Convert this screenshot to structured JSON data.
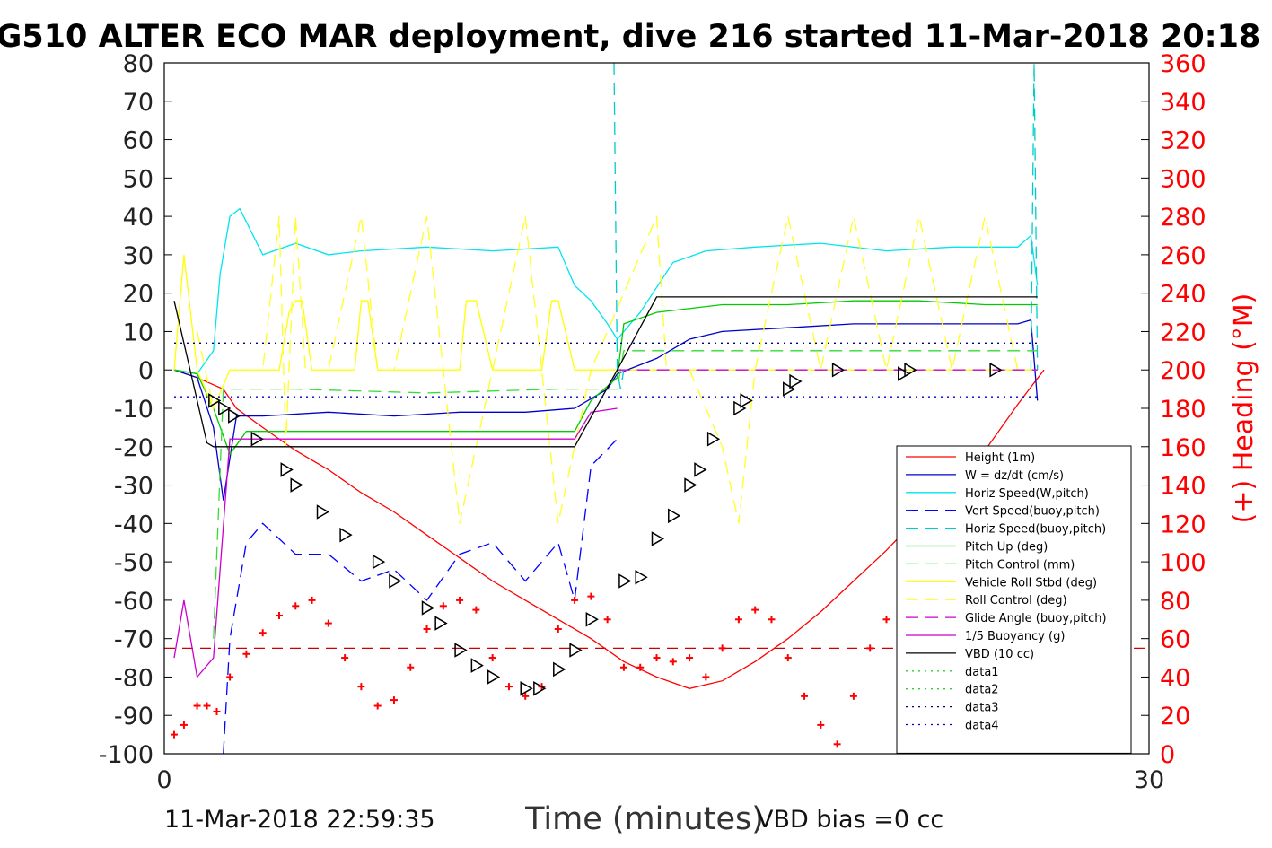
{
  "chart_data": {
    "type": "line",
    "title": "G510 ALTER ECO MAR deployment, dive 216 started 11-Mar-2018 20:18",
    "xlabel": "Time (minutes)",
    "ylabel": "",
    "y2label": "(+) Heading (°M)",
    "xlim": [
      0,
      30
    ],
    "ylim": [
      -100,
      80
    ],
    "y2lim": [
      0,
      360
    ],
    "xticks": [
      "0",
      "30"
    ],
    "yticks": [
      "80",
      "70",
      "60",
      "50",
      "40",
      "30",
      "20",
      "10",
      "0",
      "-10",
      "-20",
      "-30",
      "-40",
      "-50",
      "-60",
      "-70",
      "-80",
      "-90",
      "-100"
    ],
    "y2ticks": [
      "360",
      "340",
      "320",
      "300",
      "280",
      "260",
      "240",
      "220",
      "200",
      "180",
      "160",
      "140",
      "120",
      "100",
      "80",
      "60",
      "40",
      "20",
      "0"
    ],
    "legend_position": "bottom-right",
    "grid": false,
    "series": [
      {
        "name": "Height (1m)",
        "color": "#ff0000",
        "style": "solid",
        "x": [
          0.3,
          1.0,
          1.8,
          2.2,
          3.0,
          4.0,
          5.0,
          6.0,
          7.0,
          8.0,
          9.0,
          10.0,
          11.0,
          12.0,
          13.0,
          14.0,
          15.0,
          16.0,
          17.0,
          18.0,
          19.0,
          20.0,
          21.0,
          22.0,
          23.0,
          24.0,
          25.0,
          26.0,
          26.8
        ],
        "y": [
          0,
          -2,
          -5,
          -10,
          -15,
          -21,
          -26,
          -32,
          -37,
          -43,
          -49,
          -55,
          -60,
          -65,
          -70,
          -76,
          -80,
          -83,
          -81,
          -76,
          -70,
          -63,
          -55,
          -47,
          -38,
          -30,
          -21,
          -9,
          0
        ]
      },
      {
        "name": "W = dz/dt (cm/s)",
        "color": "#0000cc",
        "style": "solid",
        "x": [
          0.3,
          1.0,
          1.5,
          1.8,
          2.2,
          3.0,
          5.0,
          7.0,
          9.0,
          11.0,
          12.5,
          13.5,
          13.8,
          15.0,
          16.0,
          17.0,
          19.0,
          21.0,
          23.0,
          25.0,
          26.0,
          26.4,
          26.6
        ],
        "y": [
          0,
          -2,
          -15,
          -34,
          -12,
          -12,
          -11,
          -12,
          -11,
          -11,
          -10,
          -5,
          -1,
          3,
          8,
          10,
          11,
          12,
          12,
          12,
          12,
          13,
          -8
        ]
      },
      {
        "name": "Horiz Speed(W,pitch)",
        "color": "#00e5ee",
        "style": "solid",
        "x": [
          0.3,
          1.0,
          1.5,
          1.7,
          2.0,
          2.3,
          3.0,
          4.0,
          5.0,
          6.0,
          8.0,
          10.0,
          12.0,
          12.5,
          13.0,
          13.5,
          13.8,
          14.5,
          15.5,
          16.5,
          18.0,
          20.0,
          22.0,
          24.0,
          26.0,
          26.4,
          26.6
        ],
        "y": [
          0,
          -1,
          5,
          25,
          40,
          42,
          30,
          33,
          30,
          31,
          32,
          31,
          32,
          22,
          18,
          12,
          8,
          15,
          28,
          31,
          32,
          33,
          31,
          32,
          32,
          35,
          22
        ]
      },
      {
        "name": "Vert Speed(buoy,pitch)",
        "color": "#0000ff",
        "style": "dashed",
        "x": [
          1.8,
          2.0,
          2.5,
          3.0,
          4.0,
          5.0,
          6.0,
          7.0,
          8.0,
          9.0,
          10.0,
          11.0,
          12.0,
          12.5,
          13.0,
          13.8
        ],
        "y": [
          -100,
          -70,
          -45,
          -40,
          -48,
          -48,
          -55,
          -52,
          -60,
          -48,
          -45,
          -55,
          -45,
          -60,
          -25,
          -18
        ]
      },
      {
        "name": "Horiz Speed(buoy,pitch)",
        "color": "#00cccc",
        "style": "dashed",
        "x": [
          13.7,
          13.8,
          13.9,
          14.0,
          26.4,
          26.5,
          26.6
        ],
        "y": [
          80,
          0,
          -5,
          0,
          0,
          80,
          0
        ]
      },
      {
        "name": "Pitch Up (deg)",
        "color": "#00cc00",
        "style": "solid",
        "x": [
          0.3,
          1.0,
          1.5,
          2.0,
          2.5,
          3.0,
          5.0,
          7.0,
          9.0,
          11.0,
          12.0,
          12.5,
          13.0,
          13.8,
          14.0,
          15.0,
          17.0,
          19.0,
          21.0,
          23.0,
          25.0,
          26.6
        ],
        "y": [
          0,
          -1,
          -10,
          -22,
          -16,
          -16,
          -16,
          -16,
          -16,
          -16,
          -16,
          -16,
          -8,
          -2,
          12,
          15,
          17,
          17,
          18,
          18,
          17,
          17
        ]
      },
      {
        "name": "Pitch Control (mm)",
        "color": "#33dd33",
        "style": "dashed",
        "x": [
          1.5,
          1.8,
          2.0,
          4.0,
          8.0,
          12.0,
          13.8,
          14.0,
          16.0,
          20.0,
          26.6
        ],
        "y": [
          -70,
          -5,
          -5,
          -5,
          -6,
          -5,
          -5,
          5,
          5,
          5,
          5
        ]
      },
      {
        "name": "Vehicle Roll Stbd (deg)",
        "color": "#ffff00",
        "style": "solid",
        "x": [
          0.3,
          0.6,
          1.0,
          1.5,
          2.0,
          3.0,
          3.5,
          3.8,
          4.0,
          4.2,
          4.5,
          5.0,
          5.5,
          5.8,
          6.0,
          6.2,
          6.5,
          7.0,
          8.0,
          9.0,
          9.2,
          9.5,
          10.0,
          10.5,
          11.0,
          11.5,
          11.8,
          12.0,
          12.5,
          13.0,
          14.0,
          20.0,
          26.6
        ],
        "y": [
          0,
          30,
          0,
          -10,
          0,
          0,
          0,
          15,
          18,
          18,
          0,
          0,
          0,
          0,
          18,
          18,
          0,
          0,
          0,
          0,
          18,
          18,
          0,
          0,
          0,
          0,
          18,
          18,
          0,
          0,
          0,
          0,
          0
        ]
      },
      {
        "name": "Roll Control (deg)",
        "color": "#ffff22",
        "style": "dashed",
        "x": [
          1.0,
          1.5,
          2.0,
          3.0,
          3.5,
          3.7,
          4.0,
          4.3,
          5.0,
          6.0,
          6.5,
          7.0,
          8.0,
          9.0,
          10.0,
          11.0,
          12.0,
          13.0,
          15.0,
          15.3,
          16.0,
          17.0,
          17.5,
          18.0,
          19.0,
          20.0,
          21.0,
          22.0,
          23.0,
          24.0,
          25.0,
          26.0
        ],
        "y": [
          10,
          -10,
          0,
          0,
          40,
          -20,
          40,
          0,
          0,
          40,
          0,
          0,
          40,
          -40,
          0,
          40,
          -40,
          0,
          40,
          0,
          0,
          -20,
          -40,
          0,
          40,
          0,
          40,
          0,
          40,
          0,
          40,
          0
        ]
      },
      {
        "name": "Glide Angle (buoy,pitch)",
        "color": "#cc00cc",
        "style": "dashed",
        "x": [
          13.8,
          20.0,
          26.6
        ],
        "y": [
          0,
          0,
          0
        ]
      },
      {
        "name": "1/5 Buoyancy (g)",
        "color": "#cc00cc",
        "style": "solid",
        "x": [
          0.3,
          0.6,
          1.0,
          1.5,
          2.0,
          3.0,
          5.0,
          7.0,
          9.0,
          11.0,
          12.0,
          12.5,
          13.0,
          13.8
        ],
        "y": [
          -75,
          -60,
          -80,
          -75,
          -18,
          -18,
          -18,
          -18,
          -18,
          -18,
          -18,
          -18,
          -11,
          -10
        ]
      },
      {
        "name": "VBD (10 cc)",
        "color": "#000000",
        "style": "solid",
        "x": [
          0.3,
          1.3,
          1.5,
          12.5,
          13.8,
          15.0,
          16.0,
          26.6
        ],
        "y": [
          18,
          -19,
          -20,
          -20,
          0,
          19,
          19,
          19
        ]
      },
      {
        "name": "data1",
        "color": "#33cc33",
        "style": "dotted",
        "x": [],
        "y": []
      },
      {
        "name": "data2",
        "color": "#33cc33",
        "style": "dotted",
        "x": [],
        "y": []
      },
      {
        "name": "data3",
        "color": "#000088",
        "style": "dotted",
        "x": [
          0.3,
          26.6
        ],
        "y": [
          7,
          7
        ]
      },
      {
        "name": "data4",
        "color": "#0000cc",
        "style": "dotted",
        "x": [
          0.3,
          26.6
        ],
        "y": [
          -7,
          -7
        ]
      }
    ],
    "heading_points": {
      "name": "Heading",
      "color": "#ff0000",
      "marker": "+",
      "x": [
        0.3,
        0.6,
        1.0,
        1.3,
        1.6,
        2.0,
        2.5,
        3.0,
        3.5,
        4.0,
        4.5,
        5.0,
        5.5,
        6.0,
        6.5,
        7.0,
        7.5,
        8.0,
        8.5,
        9.0,
        9.5,
        10.0,
        10.5,
        11.0,
        11.5,
        12.0,
        12.5,
        13.0,
        13.5,
        14.0,
        14.5,
        15.0,
        15.5,
        16.0,
        16.5,
        17.0,
        17.5,
        18.0,
        18.5,
        19.0,
        19.5,
        20.0,
        20.5,
        21.0,
        21.5,
        22.0,
        22.5,
        23.0,
        23.5,
        24.0
      ],
      "y": [
        10,
        15,
        25,
        25,
        22,
        40,
        52,
        63,
        72,
        77,
        80,
        68,
        50,
        35,
        25,
        28,
        45,
        65,
        77,
        80,
        75,
        50,
        35,
        30,
        35,
        65,
        80,
        82,
        70,
        45,
        45,
        50,
        48,
        50,
        40,
        55,
        70,
        75,
        70,
        50,
        30,
        15,
        5,
        30,
        55,
        70,
        73,
        68,
        55,
        40
      ]
    },
    "heading_mean": {
      "y": 55,
      "color": "#cc0000",
      "style": "dashed"
    },
    "triangle_markers": {
      "color": "#000000",
      "x": [
        1.5,
        1.8,
        2.1,
        2.8,
        3.7,
        4.0,
        4.8,
        5.5,
        6.5,
        7.0,
        8.0,
        8.4,
        9.0,
        9.5,
        10.0,
        11.0,
        11.4,
        12.0,
        12.5,
        13.0,
        14.0,
        14.5,
        15.0,
        15.5,
        16.0,
        16.3,
        16.7,
        17.5,
        17.7,
        19.0,
        19.2,
        20.5,
        22.5,
        22.7,
        25.3
      ],
      "y": [
        -8,
        -10,
        -12,
        -18,
        -26,
        -30,
        -37,
        -43,
        -50,
        -55,
        -62,
        -66,
        -73,
        -77,
        -80,
        -83,
        -83,
        -78,
        -73,
        -65,
        -55,
        -54,
        -44,
        -38,
        -30,
        -26,
        -18,
        -10,
        -8,
        -5,
        -3,
        0,
        -1,
        0,
        0
      ]
    }
  },
  "footer": {
    "timestamp": "11-Mar-2018 22:59:35",
    "vbd_bias": "VBD bias =0 cc"
  }
}
